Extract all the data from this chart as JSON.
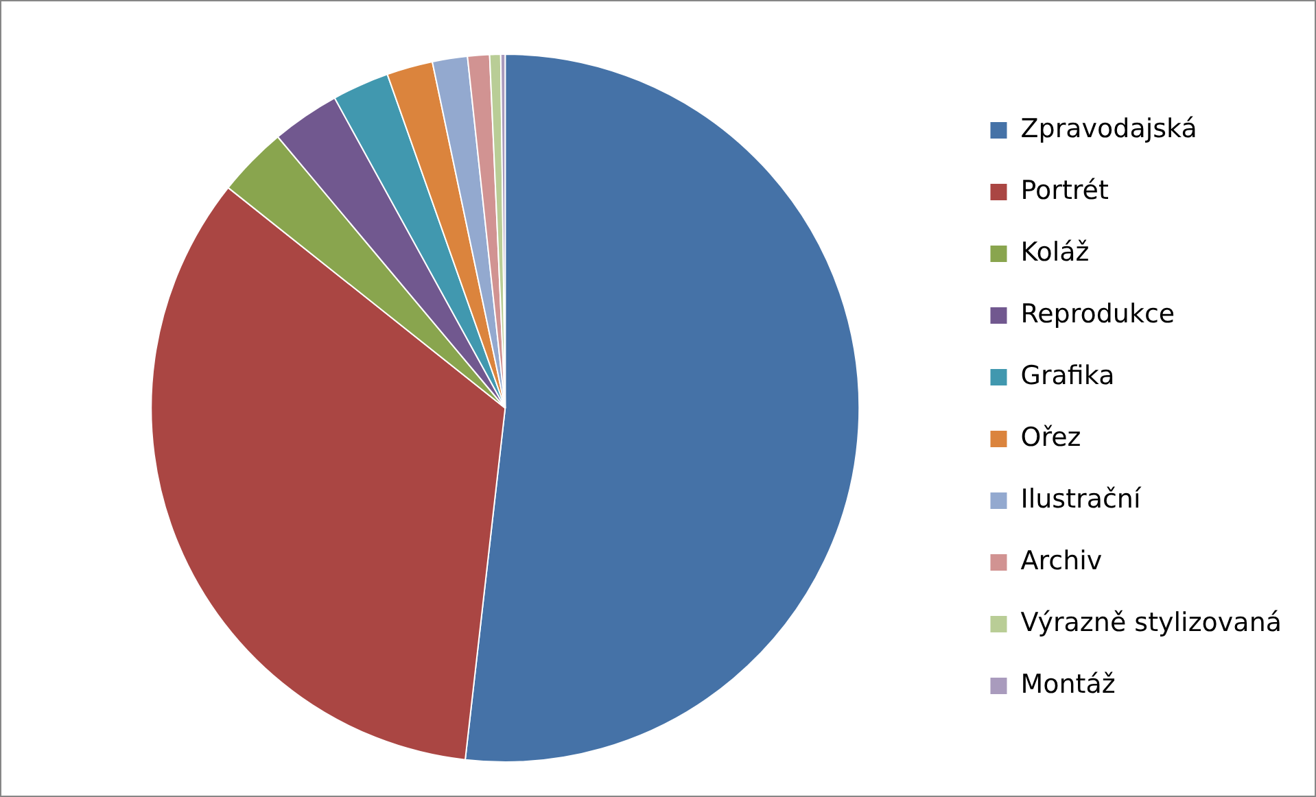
{
  "chart_data": {
    "type": "pie",
    "categories": [
      "Zpravodajská",
      "Portrét",
      "Koláž",
      "Reprodukce",
      "Grafika",
      "Ořez",
      "Ilustrační",
      "Archiv",
      "Výrazně stylizovaná",
      "Montáž"
    ],
    "values": [
      51.8,
      33.9,
      3.2,
      3.1,
      2.6,
      2.1,
      1.6,
      1.0,
      0.5,
      0.2
    ],
    "colors": [
      "#4572a7",
      "#aa4643",
      "#89a54e",
      "#71588f",
      "#4198af",
      "#db843d",
      "#93a9cf",
      "#d19392",
      "#b9cd96",
      "#a99bbd"
    ],
    "legend": "right"
  }
}
